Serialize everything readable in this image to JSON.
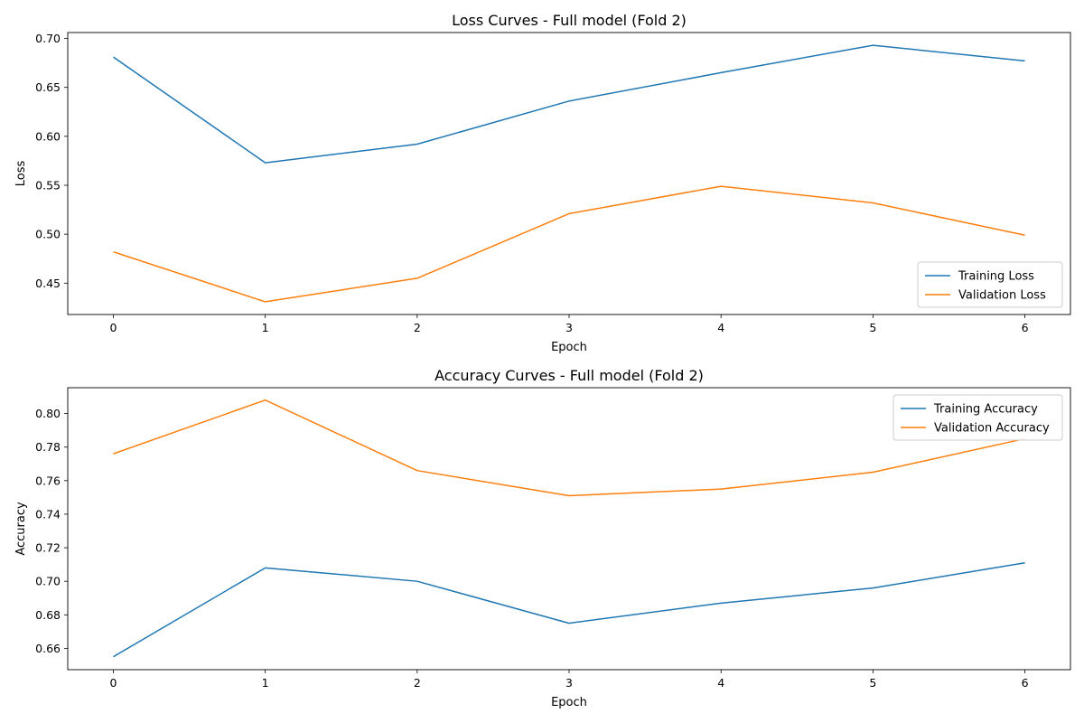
{
  "colors": {
    "training": "#1f77b4",
    "validation": "#ff7f0e"
  },
  "chart_data": [
    {
      "type": "line",
      "title": "Loss Curves - Full model (Fold 2)",
      "xlabel": "Epoch",
      "ylabel": "Loss",
      "x": [
        0,
        1,
        2,
        3,
        4,
        5,
        6
      ],
      "xticks": [
        "0",
        "1",
        "2",
        "3",
        "4",
        "5",
        "6"
      ],
      "yticks": [
        "0.45",
        "0.50",
        "0.55",
        "0.60",
        "0.65",
        "0.70"
      ],
      "xlim": [
        -0.3,
        6.3
      ],
      "ylim": [
        0.418,
        0.706
      ],
      "grid": false,
      "legend_position": "lower right",
      "series": [
        {
          "name": "Training Loss",
          "color_key": "training",
          "values": [
            0.681,
            0.573,
            0.592,
            0.636,
            0.665,
            0.693,
            0.677
          ]
        },
        {
          "name": "Validation Loss",
          "color_key": "validation",
          "values": [
            0.482,
            0.431,
            0.455,
            0.521,
            0.549,
            0.532,
            0.499
          ]
        }
      ]
    },
    {
      "type": "line",
      "title": "Accuracy Curves - Full model (Fold 2)",
      "xlabel": "Epoch",
      "ylabel": "Accuracy",
      "x": [
        0,
        1,
        2,
        3,
        4,
        5,
        6
      ],
      "xticks": [
        "0",
        "1",
        "2",
        "3",
        "4",
        "5",
        "6"
      ],
      "yticks": [
        "0.66",
        "0.68",
        "0.70",
        "0.72",
        "0.74",
        "0.76",
        "0.78",
        "0.80"
      ],
      "xlim": [
        -0.3,
        6.3
      ],
      "ylim": [
        0.6473,
        0.8154
      ],
      "grid": false,
      "legend_position": "upper right",
      "series": [
        {
          "name": "Training Accuracy",
          "color_key": "training",
          "values": [
            0.655,
            0.708,
            0.7,
            0.675,
            0.687,
            0.696,
            0.711
          ]
        },
        {
          "name": "Validation Accuracy",
          "color_key": "validation",
          "values": [
            0.776,
            0.808,
            0.766,
            0.751,
            0.755,
            0.765,
            0.785
          ]
        }
      ]
    }
  ]
}
